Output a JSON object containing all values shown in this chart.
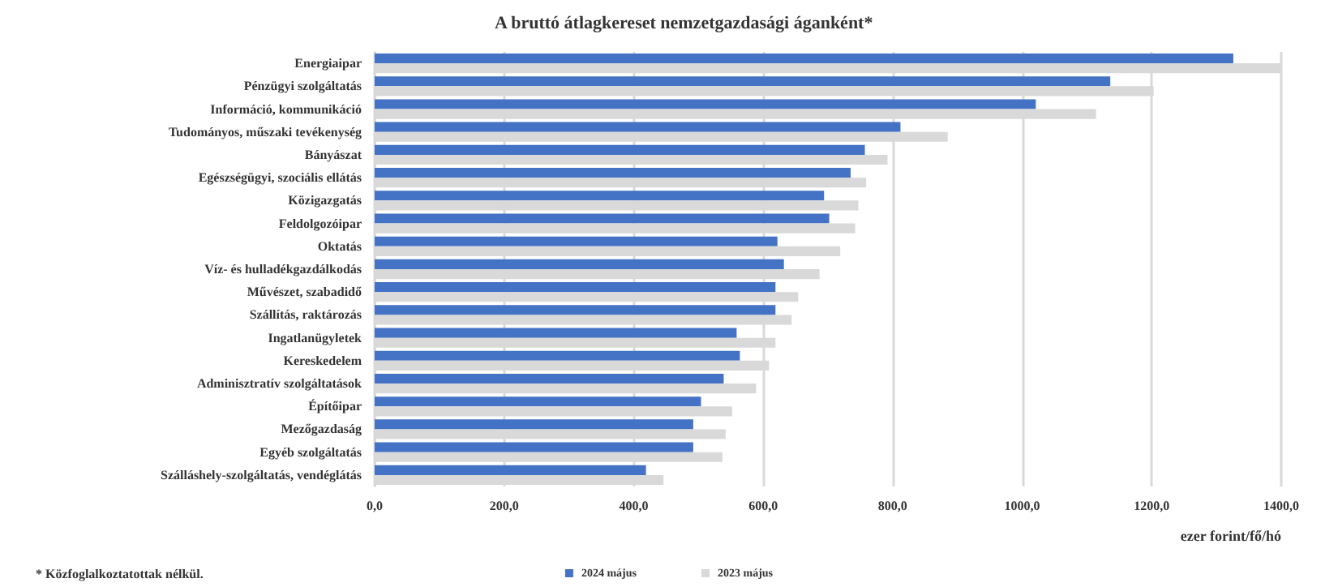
{
  "chart_data": {
    "type": "bar",
    "orientation": "horizontal",
    "title": "A bruttó átlagkereset nemzetgazdasági áganként*",
    "xlabel": "ezer forint/fő/hó",
    "categories": [
      "Energiaipar",
      "Pénzügyi szolgáltatás",
      "Információ, kommunikáció",
      "Tudományos, műszaki tevékenység",
      "Bányászat",
      "Egészségügyi, szociális ellátás",
      "Közigazgatás",
      "Feldolgozóipar",
      "Oktatás",
      "Víz- és hulladékgazdálkodás",
      "Művészet, szabadidő",
      "Szállítás, raktározás",
      "Ingatlanügyletek",
      "Kereskedelem",
      "Adminisztratív szolgáltatások",
      "Építőipar",
      "Mezőgazdaság",
      "Egyéb szolgáltatás",
      "Szálláshely-szolgáltatás, vendéglátás"
    ],
    "series": [
      {
        "name": "2024 május",
        "color": "#4472c4",
        "values": [
          1326,
          1136,
          1021,
          812,
          757,
          735,
          694,
          702,
          622,
          632,
          619,
          619,
          559,
          564,
          539,
          504,
          492,
          492,
          419
        ]
      },
      {
        "name": "2023 május",
        "color": "#d9d9d9",
        "values": [
          1399,
          1203,
          1114,
          885,
          792,
          759,
          747,
          742,
          719,
          687,
          654,
          644,
          619,
          609,
          589,
          552,
          542,
          537,
          446
        ]
      }
    ],
    "xlim": [
      0,
      1400
    ],
    "xticks": [
      {
        "value": 0,
        "label": "0,0"
      },
      {
        "value": 200,
        "label": "200,0"
      },
      {
        "value": 400,
        "label": "400,0"
      },
      {
        "value": 600,
        "label": "600,0"
      },
      {
        "value": 800,
        "label": "800,0"
      },
      {
        "value": 1000,
        "label": "1000,0"
      },
      {
        "value": 1200,
        "label": "1200,0"
      },
      {
        "value": 1400,
        "label": "1400,0"
      }
    ],
    "grid": "x",
    "legend": "bottom",
    "annotations": [
      "* Közfoglalkoztatottak nélkül."
    ]
  }
}
